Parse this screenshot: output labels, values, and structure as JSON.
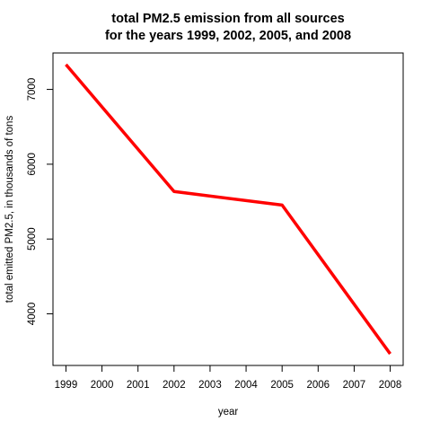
{
  "chart_data": {
    "type": "line",
    "title_line1": "total PM2.5 emission from all sources",
    "title_line2": "for the years 1999, 2002, 2005, and 2008",
    "xlabel": "year",
    "ylabel": "total emitted PM2.5, in thousands of tons",
    "x": [
      1999,
      2002,
      2005,
      2008
    ],
    "y": [
      7332,
      5635,
      5454,
      3465
    ],
    "xticks": [
      1999,
      2000,
      2001,
      2002,
      2003,
      2004,
      2005,
      2006,
      2007,
      2008
    ],
    "yticks": [
      4000,
      5000,
      6000,
      7000
    ],
    "xlim": [
      1998.64,
      2008.36
    ],
    "ylim": [
      3310,
      7487
    ],
    "line_color": "#ff0000",
    "grid": false
  }
}
